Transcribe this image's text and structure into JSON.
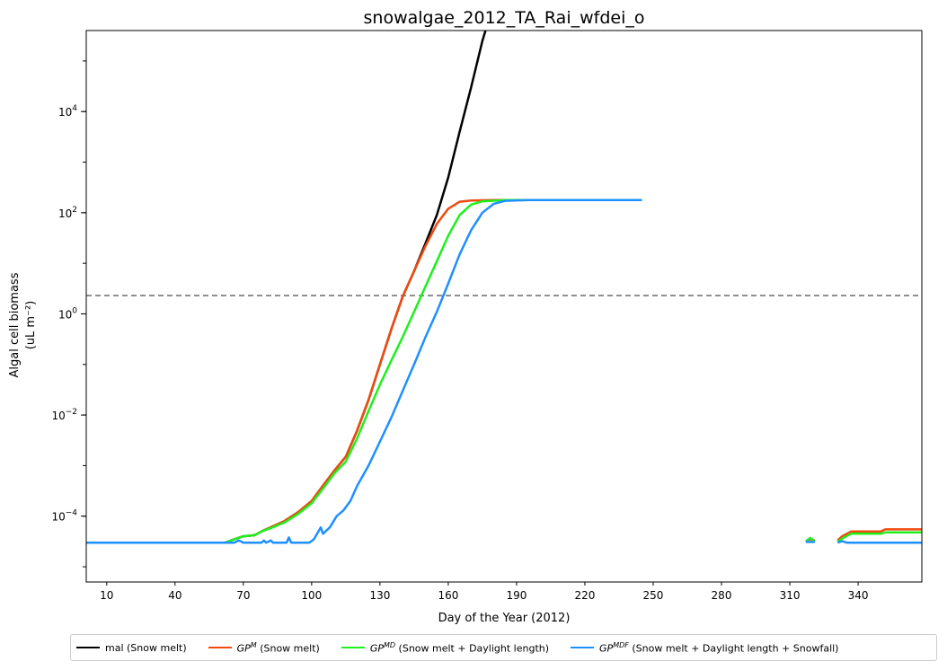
{
  "chart_data": {
    "type": "line",
    "title": "snowalgae_2012_TA_Rai_wfdei_o",
    "xlabel": "Day of the Year (2012)",
    "ylabel": "Algal cell biomass",
    "ylabel_unit": "(uL m⁻²)",
    "y_scale": "log",
    "xlim": [
      1,
      368
    ],
    "ylim": [
      5e-06,
      400000
    ],
    "x_ticks": [
      10,
      40,
      70,
      100,
      130,
      160,
      190,
      220,
      250,
      280,
      310,
      340
    ],
    "y_ticks": [
      {
        "value": 0.0001,
        "base": "10",
        "exp": "−4"
      },
      {
        "value": 0.01,
        "base": "10",
        "exp": "−2"
      },
      {
        "value": 1,
        "base": "10",
        "exp": "0"
      },
      {
        "value": 100,
        "base": "10",
        "exp": "2"
      },
      {
        "value": 10000,
        "base": "10",
        "exp": "4"
      }
    ],
    "threshold_line": {
      "y": 2.3,
      "style": "dashed",
      "color": "#808080"
    },
    "grid": false,
    "legend_position": "below",
    "series": [
      {
        "name": "mal (Snow melt)",
        "color": "#000000",
        "legend": {
          "prefix": "mal",
          "sup": "",
          "suffix": " (Snow melt)"
        },
        "segments": [
          [
            [
              1,
              3e-05
            ],
            [
              62,
              3e-05
            ],
            [
              66,
              3.5e-05
            ],
            [
              70,
              4e-05
            ],
            [
              75,
              4.2e-05
            ],
            [
              78,
              5e-05
            ],
            [
              82,
              6e-05
            ],
            [
              88,
              8e-05
            ],
            [
              94,
              0.00012
            ],
            [
              100,
              0.0002
            ],
            [
              105,
              0.0004
            ],
            [
              110,
              0.0008
            ],
            [
              115,
              0.0015
            ],
            [
              120,
              0.005
            ],
            [
              125,
              0.02
            ],
            [
              130,
              0.1
            ],
            [
              135,
              0.5
            ],
            [
              140,
              2.2
            ],
            [
              145,
              7
            ],
            [
              150,
              25
            ],
            [
              155,
              90
            ],
            [
              160,
              500
            ],
            [
              165,
              4000
            ],
            [
              170,
              30000
            ],
            [
              175,
              250000
            ],
            [
              178,
              700000
            ]
          ]
        ]
      },
      {
        "name": "GP^M (Snow melt)",
        "color": "#F04A0E",
        "legend": {
          "prefix": "GP",
          "sup": "M",
          "suffix": " (Snow melt)"
        },
        "segments": [
          [
            [
              1,
              3e-05
            ],
            [
              62,
              3e-05
            ],
            [
              66,
              3.5e-05
            ],
            [
              70,
              4e-05
            ],
            [
              75,
              4.2e-05
            ],
            [
              78,
              5e-05
            ],
            [
              82,
              6e-05
            ],
            [
              88,
              8e-05
            ],
            [
              94,
              0.00012
            ],
            [
              100,
              0.0002
            ],
            [
              105,
              0.0004
            ],
            [
              110,
              0.0008
            ],
            [
              115,
              0.0015
            ],
            [
              120,
              0.005
            ],
            [
              125,
              0.02
            ],
            [
              130,
              0.1
            ],
            [
              135,
              0.5
            ],
            [
              140,
              2.2
            ],
            [
              145,
              7
            ],
            [
              150,
              22
            ],
            [
              155,
              60
            ],
            [
              160,
              120
            ],
            [
              165,
              165
            ],
            [
              170,
              175
            ],
            [
              180,
              178
            ],
            [
              245,
              178
            ]
          ],
          [
            [
              317,
              3.2e-05
            ],
            [
              319,
              3.5e-05
            ],
            [
              321,
              3.3e-05
            ]
          ],
          [
            [
              331,
              3.3e-05
            ],
            [
              333,
              4e-05
            ],
            [
              337,
              5e-05
            ],
            [
              350,
              5e-05
            ],
            [
              352,
              5.5e-05
            ],
            [
              368,
              5.5e-05
            ]
          ]
        ]
      },
      {
        "name": "GP^MD (Snow melt + Daylight length)",
        "color": "#1EF01E",
        "legend": {
          "prefix": "GP",
          "sup": "MD",
          "suffix": " (Snow melt + Daylight length)"
        },
        "segments": [
          [
            [
              1,
              3e-05
            ],
            [
              62,
              3e-05
            ],
            [
              66,
              3.5e-05
            ],
            [
              70,
              4e-05
            ],
            [
              75,
              4.2e-05
            ],
            [
              78,
              5e-05
            ],
            [
              82,
              5.8e-05
            ],
            [
              88,
              7.5e-05
            ],
            [
              94,
              0.00011
            ],
            [
              100,
              0.00018
            ],
            [
              105,
              0.00035
            ],
            [
              110,
              0.0007
            ],
            [
              115,
              0.0012
            ],
            [
              120,
              0.0035
            ],
            [
              125,
              0.012
            ],
            [
              130,
              0.04
            ],
            [
              135,
              0.12
            ],
            [
              140,
              0.35
            ],
            [
              145,
              1.1
            ],
            [
              150,
              3.5
            ],
            [
              155,
              11
            ],
            [
              160,
              35
            ],
            [
              165,
              90
            ],
            [
              170,
              145
            ],
            [
              175,
              168
            ],
            [
              185,
              178
            ],
            [
              245,
              178
            ]
          ],
          [
            [
              317,
              3.2e-05
            ],
            [
              319,
              3.7e-05
            ],
            [
              321,
              3.2e-05
            ]
          ],
          [
            [
              331,
              3.1e-05
            ],
            [
              333,
              3.6e-05
            ],
            [
              337,
              4.5e-05
            ],
            [
              350,
              4.5e-05
            ],
            [
              352,
              4.8e-05
            ],
            [
              368,
              4.8e-05
            ]
          ]
        ]
      },
      {
        "name": "GP^MDF (Snow melt + Daylight length + Snowfall)",
        "color": "#1E90FF",
        "legend": {
          "prefix": "GP",
          "sup": "MDF",
          "suffix": " (Snow melt + Daylight length + Snowfall)"
        },
        "segments": [
          [
            [
              1,
              3e-05
            ],
            [
              66,
              3e-05
            ],
            [
              68,
              3.3e-05
            ],
            [
              70,
              3e-05
            ],
            [
              78,
              3e-05
            ],
            [
              79,
              3.3e-05
            ],
            [
              80,
              3e-05
            ],
            [
              82,
              3.3e-05
            ],
            [
              83,
              3e-05
            ],
            [
              89,
              3e-05
            ],
            [
              90,
              3.8e-05
            ],
            [
              91,
              3e-05
            ],
            [
              99,
              3e-05
            ],
            [
              101,
              3.5e-05
            ],
            [
              104,
              6e-05
            ],
            [
              105,
              4.5e-05
            ],
            [
              108,
              6e-05
            ],
            [
              111,
              0.0001
            ],
            [
              114,
              0.00013
            ],
            [
              117,
              0.0002
            ],
            [
              120,
              0.0004
            ],
            [
              125,
              0.001
            ],
            [
              130,
              0.003
            ],
            [
              135,
              0.009
            ],
            [
              140,
              0.03
            ],
            [
              145,
              0.1
            ],
            [
              150,
              0.35
            ],
            [
              155,
              1.1
            ],
            [
              160,
              4
            ],
            [
              165,
              15
            ],
            [
              170,
              45
            ],
            [
              175,
              100
            ],
            [
              180,
              150
            ],
            [
              185,
              172
            ],
            [
              195,
              178
            ],
            [
              245,
              178
            ]
          ],
          [
            [
              317,
              3.1e-05
            ],
            [
              321,
              3.1e-05
            ]
          ],
          [
            [
              331,
              3e-05
            ],
            [
              333,
              3.2e-05
            ],
            [
              335,
              3e-05
            ],
            [
              368,
              3e-05
            ]
          ]
        ]
      }
    ]
  }
}
